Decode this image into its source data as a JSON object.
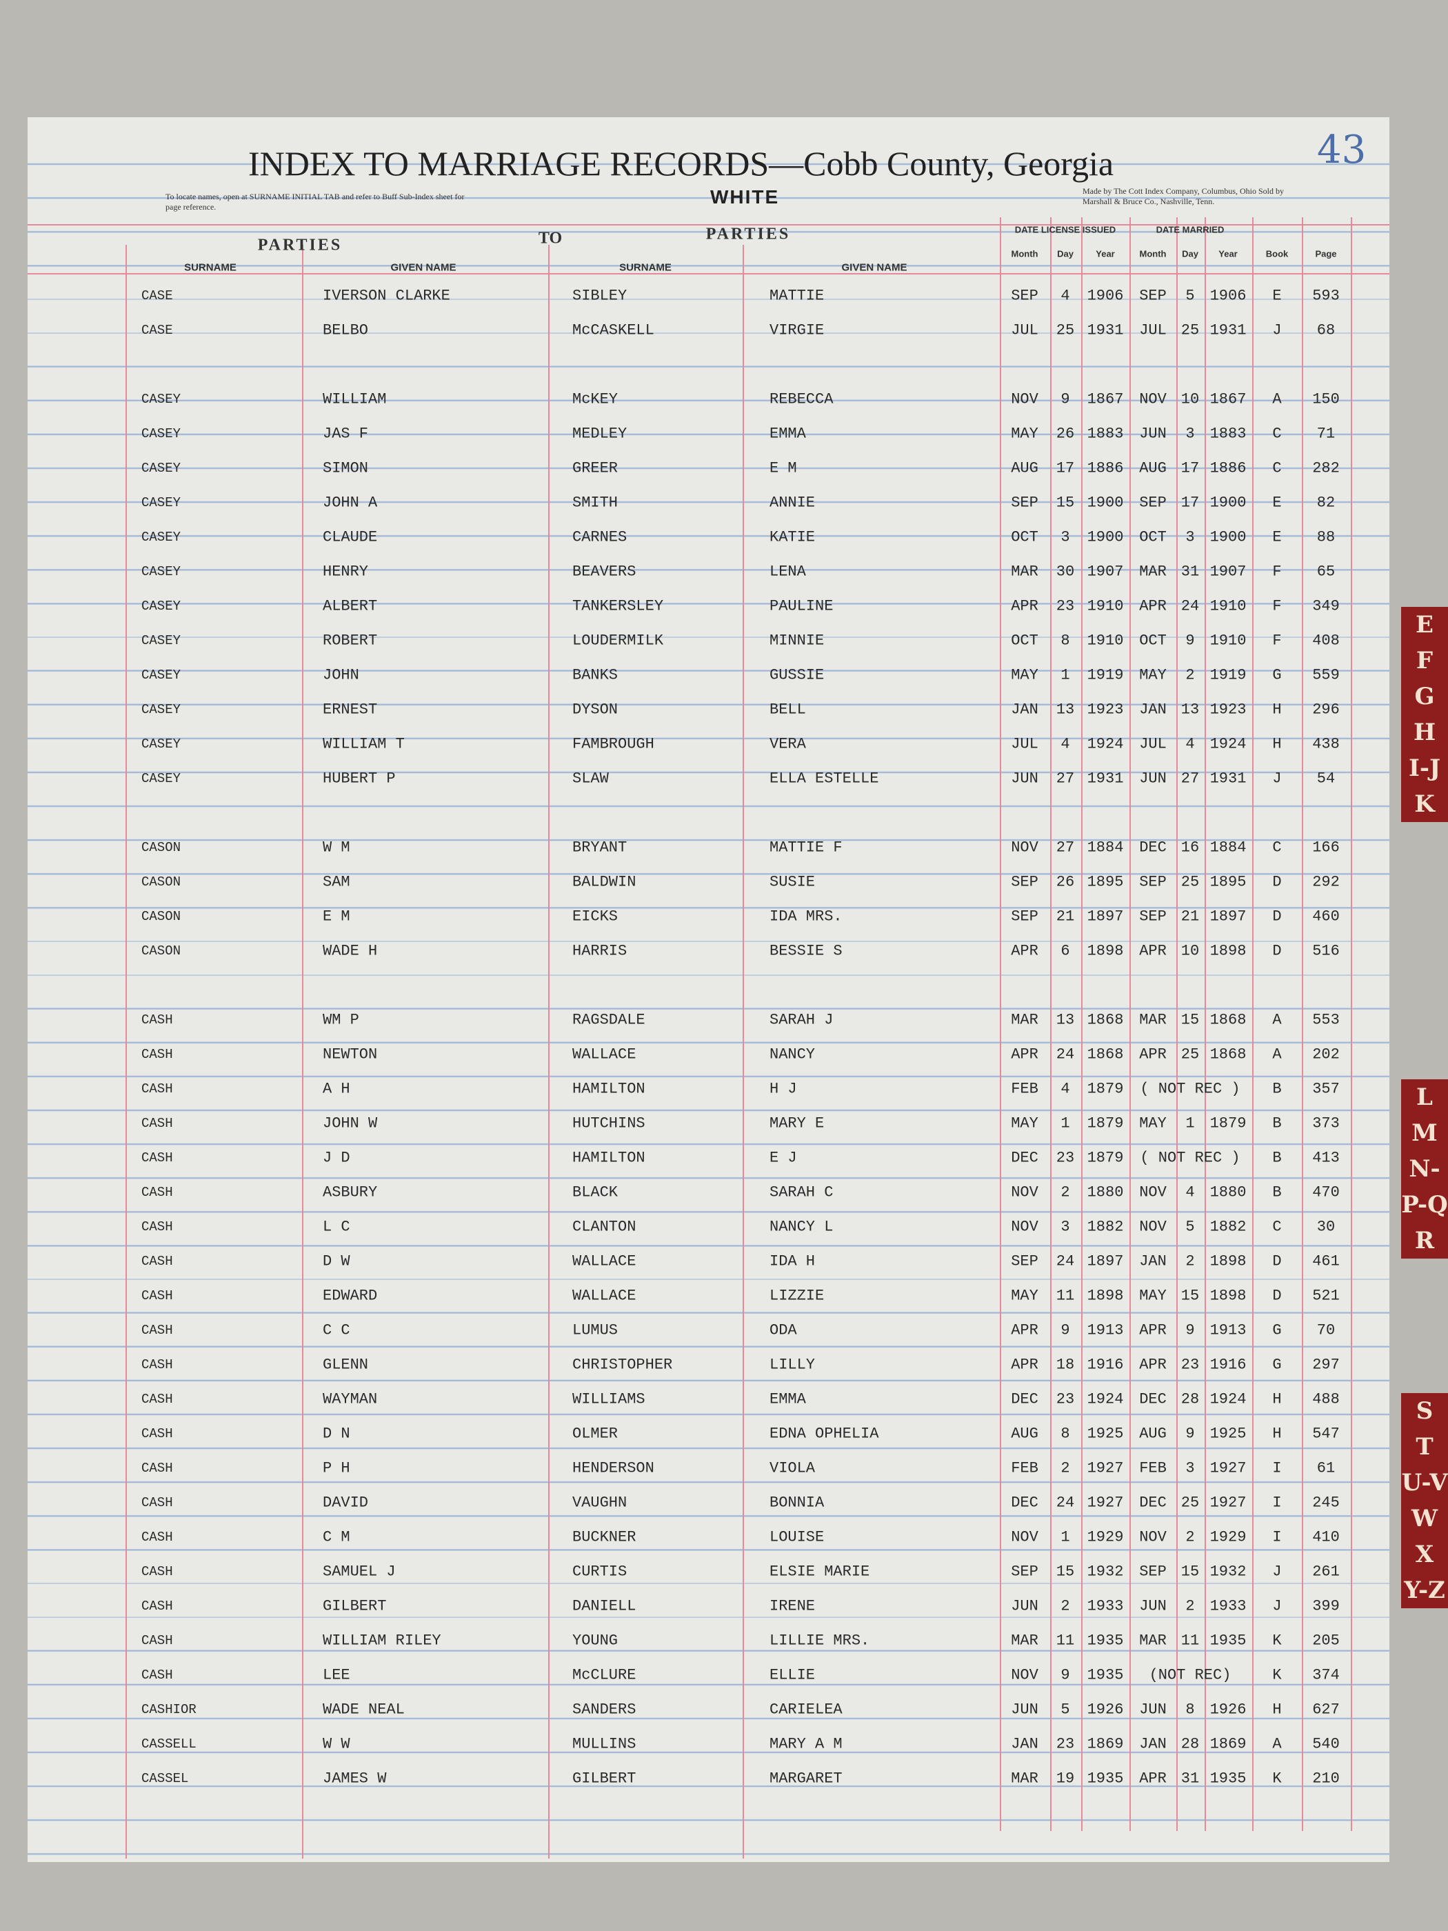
{
  "header": {
    "page_number": "43",
    "title": "INDEX TO MARRIAGE RECORDS—Cobb County, Georgia",
    "subtitle": "WHITE",
    "note_left": "To locate names, open at SURNAME INITIAL TAB and refer to Buff Sub-Index sheet for page reference.",
    "note_right": "Made by The Cott Index Company, Columbus, Ohio Sold by Marshall & Bruce Co., Nashville, Tenn."
  },
  "columns": {
    "group_left": "PARTIES",
    "group_to": "TO",
    "group_right": "PARTIES",
    "date_license": "DATE LICENSE ISSUED",
    "date_married": "DATE MARRIED",
    "labels": [
      "SURNAME",
      "GIVEN NAME",
      "SURNAME",
      "GIVEN NAME",
      "Month",
      "Day",
      "Year",
      "Month",
      "Day",
      "Year",
      "Book",
      "Page"
    ]
  },
  "rows": [
    [
      "CASE",
      "IVERSON CLARKE",
      "SIBLEY",
      "MATTIE",
      "SEP",
      "4",
      "1906",
      "SEP",
      "5",
      "1906",
      "E",
      "593"
    ],
    [
      "CASE",
      "BELBO",
      "McCASKELL",
      "VIRGIE",
      "JUL",
      "25",
      "1931",
      "JUL",
      "25",
      "1931",
      "J",
      "68"
    ],
    [
      "CASEY",
      "WILLIAM",
      "McKEY",
      "REBECCA",
      "NOV",
      "9",
      "1867",
      "NOV",
      "10",
      "1867",
      "A",
      "150"
    ],
    [
      "CASEY",
      "JAS F",
      "MEDLEY",
      "EMMA",
      "MAY",
      "26",
      "1883",
      "JUN",
      "3",
      "1883",
      "C",
      "71"
    ],
    [
      "CASEY",
      "SIMON",
      "GREER",
      "E M",
      "AUG",
      "17",
      "1886",
      "AUG",
      "17",
      "1886",
      "C",
      "282"
    ],
    [
      "CASEY",
      "JOHN A",
      "SMITH",
      "ANNIE",
      "SEP",
      "15",
      "1900",
      "SEP",
      "17",
      "1900",
      "E",
      "82"
    ],
    [
      "CASEY",
      "CLAUDE",
      "CARNES",
      "KATIE",
      "OCT",
      "3",
      "1900",
      "OCT",
      "3",
      "1900",
      "E",
      "88"
    ],
    [
      "CASEY",
      "HENRY",
      "BEAVERS",
      "LENA",
      "MAR",
      "30",
      "1907",
      "MAR",
      "31",
      "1907",
      "F",
      "65"
    ],
    [
      "CASEY",
      "ALBERT",
      "TANKERSLEY",
      "PAULINE",
      "APR",
      "23",
      "1910",
      "APR",
      "24",
      "1910",
      "F",
      "349"
    ],
    [
      "CASEY",
      "ROBERT",
      "LOUDERMILK",
      "MINNIE",
      "OCT",
      "8",
      "1910",
      "OCT",
      "9",
      "1910",
      "F",
      "408"
    ],
    [
      "CASEY",
      "JOHN",
      "BANKS",
      "GUSSIE",
      "MAY",
      "1",
      "1919",
      "MAY",
      "2",
      "1919",
      "G",
      "559"
    ],
    [
      "CASEY",
      "ERNEST",
      "DYSON",
      "BELL",
      "JAN",
      "13",
      "1923",
      "JAN",
      "13",
      "1923",
      "H",
      "296"
    ],
    [
      "CASEY",
      "WILLIAM T",
      "FAMBROUGH",
      "VERA",
      "JUL",
      "4",
      "1924",
      "JUL",
      "4",
      "1924",
      "H",
      "438"
    ],
    [
      "CASEY",
      "HUBERT P",
      "SLAW",
      "ELLA ESTELLE",
      "JUN",
      "27",
      "1931",
      "JUN",
      "27",
      "1931",
      "J",
      "54"
    ],
    [
      "CASON",
      "W M",
      "BRYANT",
      "MATTIE F",
      "NOV",
      "27",
      "1884",
      "DEC",
      "16",
      "1884",
      "C",
      "166"
    ],
    [
      "CASON",
      "SAM",
      "BALDWIN",
      "SUSIE",
      "SEP",
      "26",
      "1895",
      "SEP",
      "25",
      "1895",
      "D",
      "292"
    ],
    [
      "CASON",
      "E M",
      "EICKS",
      "IDA MRS.",
      "SEP",
      "21",
      "1897",
      "SEP",
      "21",
      "1897",
      "D",
      "460"
    ],
    [
      "CASON",
      "WADE H",
      "HARRIS",
      "BESSIE S",
      "APR",
      "6",
      "1898",
      "APR",
      "10",
      "1898",
      "D",
      "516"
    ],
    [
      "CASH",
      "WM P",
      "RAGSDALE",
      "SARAH J",
      "MAR",
      "13",
      "1868",
      "MAR",
      "15",
      "1868",
      "A",
      "553"
    ],
    [
      "CASH",
      "NEWTON",
      "WALLACE",
      "NANCY",
      "APR",
      "24",
      "1868",
      "APR",
      "25",
      "1868",
      "A",
      "202"
    ],
    [
      "CASH",
      "A H",
      "HAMILTON",
      "H J",
      "FEB",
      "4",
      "1879",
      "( NOT REC )",
      "B",
      "357"
    ],
    [
      "CASH",
      "JOHN W",
      "HUTCHINS",
      "MARY E",
      "MAY",
      "1",
      "1879",
      "MAY",
      "1",
      "1879",
      "B",
      "373"
    ],
    [
      "CASH",
      "J D",
      "HAMILTON",
      "E J",
      "DEC",
      "23",
      "1879",
      "( NOT REC )",
      "B",
      "413"
    ],
    [
      "CASH",
      "ASBURY",
      "BLACK",
      "SARAH C",
      "NOV",
      "2",
      "1880",
      "NOV",
      "4",
      "1880",
      "B",
      "470"
    ],
    [
      "CASH",
      "L C",
      "CLANTON",
      "NANCY L",
      "NOV",
      "3",
      "1882",
      "NOV",
      "5",
      "1882",
      "C",
      "30"
    ],
    [
      "CASH",
      "D W",
      "WALLACE",
      "IDA H",
      "SEP",
      "24",
      "1897",
      "JAN",
      "2",
      "1898",
      "D",
      "461"
    ],
    [
      "CASH",
      "EDWARD",
      "WALLACE",
      "LIZZIE",
      "MAY",
      "11",
      "1898",
      "MAY",
      "15",
      "1898",
      "D",
      "521"
    ],
    [
      "CASH",
      "C C",
      "LUMUS",
      "ODA",
      "APR",
      "9",
      "1913",
      "APR",
      "9",
      "1913",
      "G",
      "70"
    ],
    [
      "CASH",
      "GLENN",
      "CHRISTOPHER",
      "LILLY",
      "APR",
      "18",
      "1916",
      "APR",
      "23",
      "1916",
      "G",
      "297"
    ],
    [
      "CASH",
      "WAYMAN",
      "WILLIAMS",
      "EMMA",
      "DEC",
      "23",
      "1924",
      "DEC",
      "28",
      "1924",
      "H",
      "488"
    ],
    [
      "CASH",
      "D N",
      "OLMER",
      "EDNA OPHELIA",
      "AUG",
      "8",
      "1925",
      "AUG",
      "9",
      "1925",
      "H",
      "547"
    ],
    [
      "CASH",
      "P H",
      "HENDERSON",
      "VIOLA",
      "FEB",
      "2",
      "1927",
      "FEB",
      "3",
      "1927",
      "I",
      "61"
    ],
    [
      "CASH",
      "DAVID",
      "VAUGHN",
      "BONNIA",
      "DEC",
      "24",
      "1927",
      "DEC",
      "25",
      "1927",
      "I",
      "245"
    ],
    [
      "CASH",
      "C M",
      "BUCKNER",
      "LOUISE",
      "NOV",
      "1",
      "1929",
      "NOV",
      "2",
      "1929",
      "I",
      "410"
    ],
    [
      "CASH",
      "SAMUEL J",
      "CURTIS",
      "ELSIE MARIE",
      "SEP",
      "15",
      "1932",
      "SEP",
      "15",
      "1932",
      "J",
      "261"
    ],
    [
      "CASH",
      "GILBERT",
      "DANIELL",
      "IRENE",
      "JUN",
      "2",
      "1933",
      "JUN",
      "2",
      "1933",
      "J",
      "399"
    ],
    [
      "CASH",
      "WILLIAM RILEY",
      "YOUNG",
      "LILLIE MRS.",
      "MAR",
      "11",
      "1935",
      "MAR",
      "11",
      "1935",
      "K",
      "205"
    ],
    [
      "CASH",
      "LEE",
      "McCLURE",
      "ELLIE",
      "NOV",
      "9",
      "1935",
      "(NOT REC)",
      "K",
      "374"
    ],
    [
      "CASHIOR",
      "WADE NEAL",
      "SANDERS",
      "CARIELEA",
      "JUN",
      "5",
      "1926",
      "JUN",
      "8",
      "1926",
      "H",
      "627"
    ],
    [
      "CASSELL",
      "W W",
      "MULLINS",
      "MARY A M",
      "JAN",
      "23",
      "1869",
      "JAN",
      "28",
      "1869",
      "A",
      "540"
    ],
    [
      "CASSEL",
      "JAMES W",
      "GILBERT",
      "MARGARET",
      "MAR",
      "19",
      "1935",
      "APR",
      "31",
      "1935",
      "K",
      "210"
    ]
  ],
  "tabs": [
    [
      "E",
      "F",
      "G",
      "H",
      "I-J",
      "K"
    ],
    [
      "L",
      "M",
      "N-O",
      "P-Q",
      "R"
    ],
    [
      "S",
      "T",
      "U-V",
      "W",
      "X",
      "Y-Z"
    ]
  ]
}
